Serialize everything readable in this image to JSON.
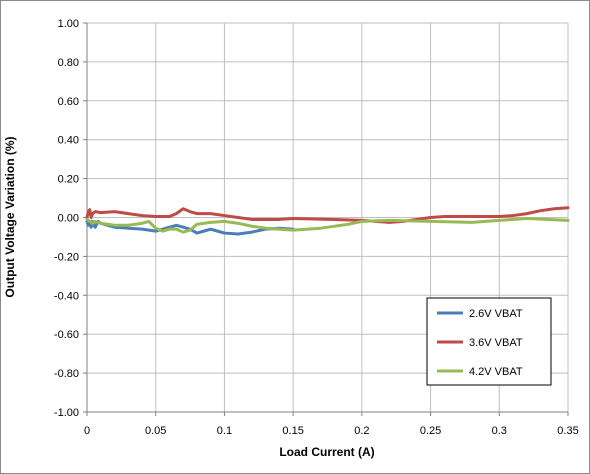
{
  "chart_data": {
    "type": "line",
    "title": "",
    "xlabel": "Load Current (A)",
    "ylabel": "Output Voltage Variation (%)",
    "xlim": [
      0,
      0.35
    ],
    "ylim": [
      -1.0,
      1.0
    ],
    "xticks": [
      0,
      0.05,
      0.1,
      0.15,
      0.2,
      0.25,
      0.3,
      0.35
    ],
    "xtick_labels": [
      "0",
      "0.05",
      "0.1",
      "0.15",
      "0.2",
      "0.25",
      "0.3",
      "0.35"
    ],
    "yticks": [
      1.0,
      0.8,
      0.6,
      0.4,
      0.2,
      0.0,
      -0.2,
      -0.4,
      -0.6,
      -0.8,
      -1.0
    ],
    "ytick_labels": [
      "1.00",
      "0.80",
      "0.60",
      "0.40",
      "0.20",
      "0.00",
      "-0.20",
      "-0.40",
      "-0.60",
      "-0.80",
      "-1.00"
    ],
    "grid": true,
    "legend_position": "bottom-right",
    "series": [
      {
        "name": "2.6V VBAT",
        "color": "#4a7ebb",
        "x": [
          0,
          0.001,
          0.002,
          0.003,
          0.004,
          0.005,
          0.006,
          0.008,
          0.01,
          0.015,
          0.02,
          0.03,
          0.04,
          0.05,
          0.055,
          0.06,
          0.065,
          0.07,
          0.075,
          0.08,
          0.085,
          0.09,
          0.095,
          0.1,
          0.11,
          0.12,
          0.13,
          0.14,
          0.15
        ],
        "y": [
          -0.02,
          -0.04,
          -0.02,
          -0.05,
          -0.02,
          -0.04,
          -0.05,
          -0.02,
          -0.03,
          -0.04,
          -0.05,
          -0.055,
          -0.06,
          -0.07,
          -0.06,
          -0.05,
          -0.04,
          -0.05,
          -0.06,
          -0.08,
          -0.07,
          -0.06,
          -0.07,
          -0.08,
          -0.085,
          -0.075,
          -0.06,
          -0.055,
          -0.06
        ]
      },
      {
        "name": "3.6V VBAT",
        "color": "#be4b48",
        "x": [
          0,
          0.001,
          0.002,
          0.003,
          0.004,
          0.006,
          0.01,
          0.02,
          0.03,
          0.04,
          0.05,
          0.06,
          0.065,
          0.07,
          0.075,
          0.08,
          0.09,
          0.1,
          0.11,
          0.12,
          0.14,
          0.15,
          0.18,
          0.2,
          0.21,
          0.22,
          0.23,
          0.24,
          0.25,
          0.26,
          0.28,
          0.3,
          0.31,
          0.32,
          0.33,
          0.34,
          0.35
        ],
        "y": [
          0.0,
          0.03,
          0.04,
          0.0,
          0.02,
          0.03,
          0.025,
          0.03,
          0.02,
          0.01,
          0.005,
          0.005,
          0.02,
          0.045,
          0.03,
          0.02,
          0.02,
          0.01,
          0.0,
          -0.01,
          -0.01,
          -0.005,
          -0.01,
          -0.015,
          -0.02,
          -0.025,
          -0.02,
          -0.01,
          0.0,
          0.005,
          0.005,
          0.005,
          0.01,
          0.02,
          0.035,
          0.045,
          0.05
        ]
      },
      {
        "name": "4.2V VBAT",
        "color": "#98b954",
        "x": [
          0,
          0.002,
          0.004,
          0.006,
          0.01,
          0.02,
          0.03,
          0.04,
          0.045,
          0.05,
          0.055,
          0.06,
          0.065,
          0.07,
          0.075,
          0.08,
          0.09,
          0.1,
          0.11,
          0.12,
          0.13,
          0.15,
          0.17,
          0.19,
          0.2,
          0.22,
          0.25,
          0.28,
          0.3,
          0.32,
          0.35
        ],
        "y": [
          -0.01,
          -0.02,
          -0.03,
          -0.02,
          -0.03,
          -0.04,
          -0.04,
          -0.03,
          -0.02,
          -0.055,
          -0.07,
          -0.06,
          -0.06,
          -0.075,
          -0.065,
          -0.035,
          -0.025,
          -0.02,
          -0.03,
          -0.045,
          -0.055,
          -0.065,
          -0.055,
          -0.035,
          -0.02,
          -0.015,
          -0.02,
          -0.025,
          -0.015,
          -0.005,
          -0.015
        ]
      }
    ]
  }
}
